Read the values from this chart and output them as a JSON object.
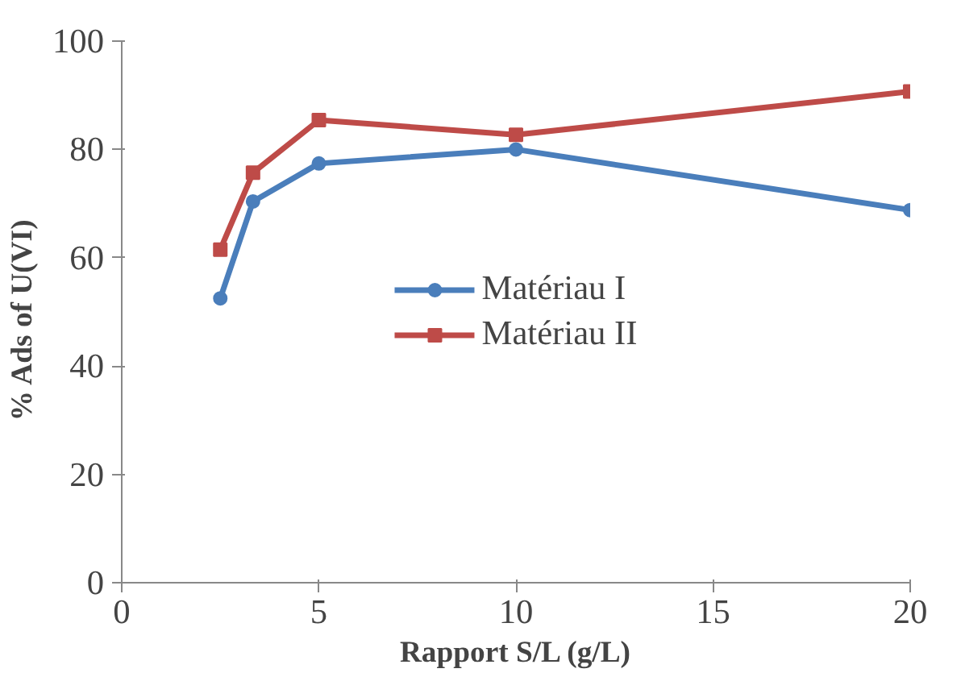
{
  "chart_data": {
    "type": "line",
    "xlabel": "Rapport S/L (g/L)",
    "ylabel": "%  Ads of  U(VI)",
    "xlim": [
      0,
      20
    ],
    "ylim": [
      0,
      100
    ],
    "xticks": [
      0,
      5,
      10,
      15,
      20
    ],
    "yticks": [
      0,
      20,
      40,
      60,
      80,
      100
    ],
    "grid": false,
    "legend": "center",
    "line_style": "solid",
    "series": [
      {
        "name": "Matériau I",
        "color": "#4a7ebb",
        "marker": "circle",
        "x": [
          2.5,
          3.33,
          5,
          10,
          20
        ],
        "values": [
          52.5,
          70.4,
          77.4,
          80,
          68.8
        ]
      },
      {
        "name": "Matériau II",
        "color": "#be4b48",
        "marker": "square",
        "x": [
          2.5,
          3.33,
          5,
          10,
          20
        ],
        "values": [
          61.5,
          75.7,
          85.4,
          82.7,
          90.7
        ]
      }
    ]
  }
}
